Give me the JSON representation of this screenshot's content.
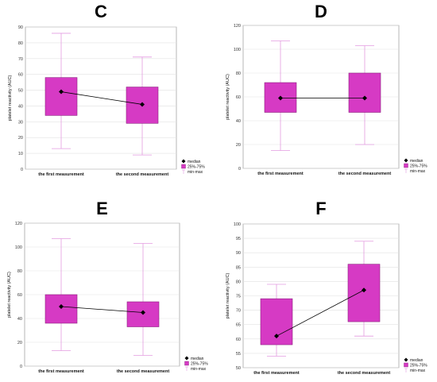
{
  "colors": {
    "box_fill": "#d63ac4",
    "box_stroke": "#8a1f7e",
    "whisker": "#e39be0",
    "median": "#000000",
    "grid": "#e2e2e2"
  },
  "chart_data": [
    {
      "panel_label": "C",
      "type": "boxplot",
      "categories": [
        "the first measurement",
        "the second measurement"
      ],
      "ylabel": "platelet reactivity (AUC)",
      "ylim": [
        0,
        90
      ],
      "yticks": [
        0,
        10,
        20,
        30,
        40,
        50,
        60,
        70,
        80,
        90
      ],
      "boxes": [
        {
          "min": 13,
          "q1": 34,
          "median": 49,
          "q3": 58,
          "max": 86
        },
        {
          "min": 9,
          "q1": 29,
          "median": 41,
          "q3": 52,
          "max": 71
        }
      ],
      "legend": [
        "median",
        "25%-75%",
        "min-max"
      ],
      "grid": true,
      "legend_position": "bottom-right"
    },
    {
      "panel_label": "D",
      "type": "boxplot",
      "categories": [
        "the first measurement",
        "the second measurement"
      ],
      "ylabel": "platelet reactivity (AUC)",
      "ylim": [
        0,
        120
      ],
      "yticks": [
        0,
        20,
        40,
        60,
        80,
        100,
        120
      ],
      "boxes": [
        {
          "min": 15,
          "q1": 47,
          "median": 59,
          "q3": 72,
          "max": 107
        },
        {
          "min": 20,
          "q1": 47,
          "median": 59,
          "q3": 80,
          "max": 103
        }
      ],
      "legend": [
        "median",
        "25%-75%",
        "min-max"
      ],
      "grid": true,
      "legend_position": "bottom-right"
    },
    {
      "panel_label": "E",
      "type": "boxplot",
      "categories": [
        "the first measurement",
        "the second measurement"
      ],
      "ylabel": "platelet reactivity (AUC)",
      "ylim": [
        0,
        120
      ],
      "yticks": [
        0,
        20,
        40,
        60,
        80,
        100,
        120
      ],
      "boxes": [
        {
          "min": 13,
          "q1": 36,
          "median": 50,
          "q3": 60,
          "max": 107
        },
        {
          "min": 9,
          "q1": 33,
          "median": 45,
          "q3": 54,
          "max": 103
        }
      ],
      "legend": [
        "median",
        "25%-75%",
        "min-max"
      ],
      "grid": true,
      "legend_position": "bottom-right"
    },
    {
      "panel_label": "F",
      "type": "boxplot",
      "categories": [
        "the first measurement",
        "the second measurement"
      ],
      "ylabel": "platelet reactivity (AUC)",
      "ylim": [
        50,
        100
      ],
      "yticks": [
        50,
        55,
        60,
        65,
        70,
        75,
        80,
        85,
        90,
        95,
        100
      ],
      "boxes": [
        {
          "min": 54,
          "q1": 58,
          "median": 61,
          "q3": 74,
          "max": 79
        },
        {
          "min": 61,
          "q1": 66,
          "median": 77,
          "q3": 86,
          "max": 94
        }
      ],
      "legend": [
        "median",
        "25%-75%",
        "min-max"
      ],
      "grid": true,
      "legend_position": "bottom-right"
    }
  ]
}
